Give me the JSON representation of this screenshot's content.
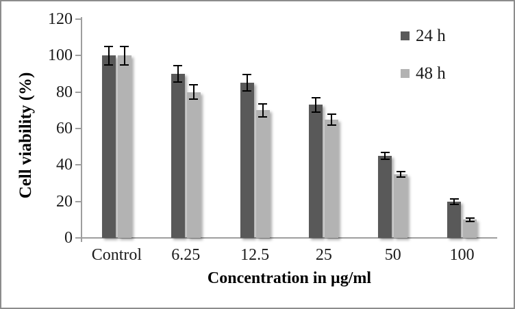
{
  "colors": {
    "frame_border": "#8c8c8c",
    "axis_line": "#9e9e9e",
    "error_bar": "#000000",
    "background": "#ffffff",
    "series_24h": "#595959",
    "series_48h": "#b3b3b3"
  },
  "chart_data": {
    "type": "bar",
    "title": "",
    "xlabel": "Concentration in µg/ml",
    "ylabel": "Cell viability (%)",
    "ylim": [
      0,
      120
    ],
    "yticks": [
      0,
      20,
      40,
      60,
      80,
      100,
      120
    ],
    "grid": false,
    "legend_position": "top-right",
    "categories": [
      "Control",
      "6.25",
      "12.5",
      "25",
      "50",
      "100"
    ],
    "series": [
      {
        "name": "24 h",
        "color": "#595959",
        "values": [
          100,
          90,
          85,
          73,
          45,
          20
        ],
        "errors": [
          5,
          4.5,
          4.5,
          4,
          2,
          1.5
        ]
      },
      {
        "name": "48 h",
        "color": "#b3b3b3",
        "values": [
          100,
          80,
          70,
          65,
          35,
          10
        ],
        "errors": [
          5,
          4,
          3.5,
          3,
          1.5,
          1
        ]
      }
    ]
  }
}
